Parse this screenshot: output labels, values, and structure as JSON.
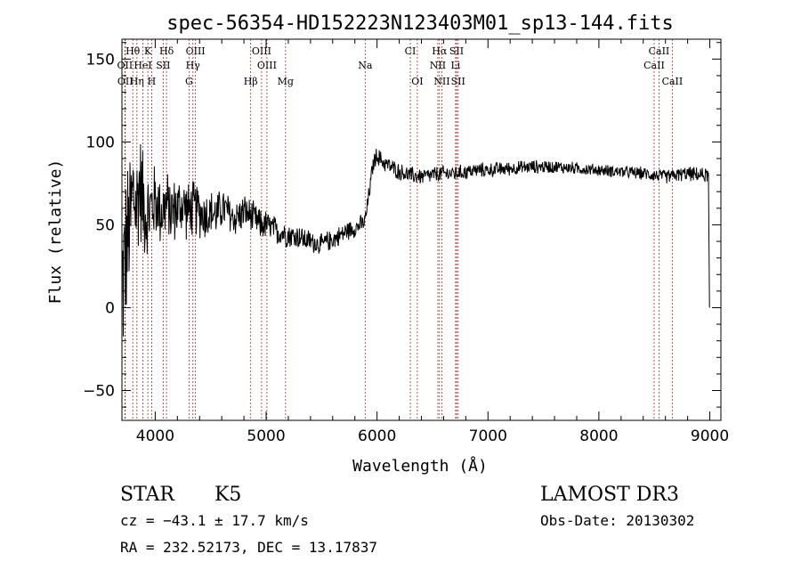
{
  "chart_data": {
    "type": "line",
    "title": "spec-56354-HD152223N123403M01_sp13-144.fits",
    "xlabel": "Wavelength (Å)",
    "ylabel": "Flux (relative)",
    "xlim": [
      3700,
      9100
    ],
    "ylim": [
      -68,
      162
    ],
    "x_ticks": [
      4000,
      5000,
      6000,
      7000,
      8000,
      9000
    ],
    "x_tick_labels": [
      "4000",
      "5000",
      "6000",
      "7000",
      "8000",
      "9000"
    ],
    "y_ticks": [
      -50,
      0,
      50,
      100,
      150
    ],
    "y_tick_labels": [
      "−50",
      "0",
      "50",
      "100",
      "150"
    ],
    "grid": false,
    "series": [
      {
        "color": "#000000",
        "envelope": {
          "x": [
            3700,
            3720,
            3750,
            3780,
            3800,
            3830,
            3860,
            3900,
            3930,
            3960,
            4000,
            4050,
            4100,
            4150,
            4200,
            4250,
            4300,
            4350,
            4400,
            4450,
            4500,
            4550,
            4600,
            4650,
            4700,
            4750,
            4800,
            4850,
            4900,
            4950,
            5000,
            5050,
            5100,
            5150,
            5200,
            5250,
            5300,
            5350,
            5400,
            5450,
            5500,
            5550,
            5600,
            5650,
            5700,
            5750,
            5800,
            5850,
            5880,
            5900,
            5920,
            5950,
            5970,
            6000,
            6050,
            6100,
            6150,
            6200,
            6300,
            6400,
            6500,
            6600,
            6700,
            6800,
            6900,
            7000,
            7200,
            7400,
            7600,
            7800,
            8000,
            8200,
            8400,
            8500,
            8600,
            8700,
            8800,
            8900,
            8980,
            9000
          ],
          "y": [
            10,
            25,
            40,
            55,
            70,
            60,
            75,
            62,
            55,
            60,
            65,
            58,
            62,
            58,
            60,
            62,
            58,
            60,
            58,
            56,
            57,
            56,
            60,
            58,
            54,
            55,
            58,
            56,
            53,
            50,
            50,
            48,
            46,
            45,
            44,
            43,
            43,
            41,
            40,
            39,
            38,
            40,
            41,
            43,
            45,
            47,
            48,
            50,
            51,
            55,
            65,
            80,
            88,
            92,
            88,
            86,
            84,
            82,
            80,
            79,
            80,
            81,
            81,
            82,
            83,
            83,
            84,
            85,
            85,
            84,
            83,
            82,
            81,
            80,
            79,
            80,
            81,
            80,
            80,
            78
          ]
        },
        "noise_amplitude": [
          [
            3700,
            60
          ],
          [
            3800,
            45
          ],
          [
            3900,
            35
          ],
          [
            4000,
            25
          ],
          [
            4300,
            20
          ],
          [
            4600,
            14
          ],
          [
            5000,
            10
          ],
          [
            5500,
            7
          ],
          [
            6000,
            6
          ],
          [
            7000,
            5
          ],
          [
            8000,
            4
          ],
          [
            9000,
            5
          ]
        ]
      }
    ],
    "spectral_lines": [
      {
        "label": "Hθ",
        "x": 3798,
        "row": 1
      },
      {
        "label": "K",
        "x": 3934,
        "row": 1
      },
      {
        "label": "Hδ",
        "x": 4102,
        "row": 1
      },
      {
        "label": "OIII",
        "x": 4363,
        "row": 1
      },
      {
        "label": "OIII",
        "x": 4959,
        "row": 1
      },
      {
        "label": "CI",
        "x": 6300,
        "row": 1
      },
      {
        "label": "Hα",
        "x": 6563,
        "row": 1
      },
      {
        "label": "SII",
        "x": 6717,
        "row": 1
      },
      {
        "label": "CaII",
        "x": 8542,
        "row": 1
      },
      {
        "label": "OII",
        "x": 3727,
        "row": 2
      },
      {
        "label": "HeI",
        "x": 3889,
        "row": 2
      },
      {
        "label": "SII",
        "x": 4072,
        "row": 2
      },
      {
        "label": "Hγ",
        "x": 4340,
        "row": 2
      },
      {
        "label": "OIII",
        "x": 5007,
        "row": 2
      },
      {
        "label": "Na",
        "x": 5893,
        "row": 2
      },
      {
        "label": "NII",
        "x": 6548,
        "row": 2
      },
      {
        "label": "Li",
        "x": 6708,
        "row": 2
      },
      {
        "label": "CaII",
        "x": 8498,
        "row": 2
      },
      {
        "label": "OII",
        "x": 3730,
        "row": 3
      },
      {
        "label": "Hη",
        "x": 3835,
        "row": 3
      },
      {
        "label": "H",
        "x": 3968,
        "row": 3
      },
      {
        "label": "G",
        "x": 4305,
        "row": 3
      },
      {
        "label": "Hβ",
        "x": 4861,
        "row": 3
      },
      {
        "label": "Mg",
        "x": 5175,
        "row": 3
      },
      {
        "label": "OI",
        "x": 6363,
        "row": 3
      },
      {
        "label": "NII",
        "x": 6584,
        "row": 3
      },
      {
        "label": "SII",
        "x": 6731,
        "row": 3
      },
      {
        "label": "CaII",
        "x": 8662,
        "row": 3
      }
    ]
  },
  "info": {
    "class": "STAR",
    "subclass": "K5",
    "survey": "LAMOST DR3",
    "cz": "cz = −43.1 ± 17.7 km/s",
    "obs_date": "Obs-Date: 20130302",
    "coords": "RA = 232.52173, DEC =  13.17837"
  }
}
